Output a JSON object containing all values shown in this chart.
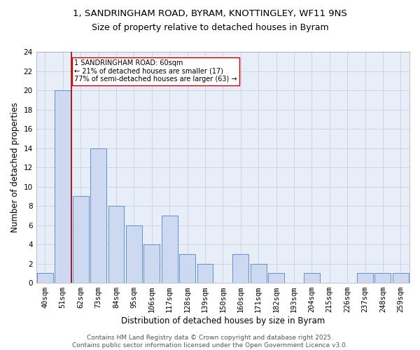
{
  "title_line1": "1, SANDRINGHAM ROAD, BYRAM, KNOTTINGLEY, WF11 9NS",
  "title_line2": "Size of property relative to detached houses in Byram",
  "xlabel": "Distribution of detached houses by size in Byram",
  "ylabel": "Number of detached properties",
  "bar_labels": [
    "40sqm",
    "51sqm",
    "62sqm",
    "73sqm",
    "84sqm",
    "95sqm",
    "106sqm",
    "117sqm",
    "128sqm",
    "139sqm",
    "150sqm",
    "160sqm",
    "171sqm",
    "182sqm",
    "193sqm",
    "204sqm",
    "215sqm",
    "226sqm",
    "237sqm",
    "248sqm",
    "259sqm"
  ],
  "bar_values": [
    1,
    20,
    9,
    14,
    8,
    6,
    4,
    7,
    3,
    2,
    0,
    3,
    2,
    1,
    0,
    1,
    0,
    0,
    1,
    1,
    1
  ],
  "bar_color": "#ccd9f0",
  "bar_edge_color": "#6090d0",
  "grid_color": "#c8d4e8",
  "background_color": "#e8eef8",
  "vline_color": "#aa0000",
  "annotation_text": "1 SANDRINGHAM ROAD: 60sqm\n← 21% of detached houses are smaller (17)\n77% of semi-detached houses are larger (63) →",
  "annotation_box_color": "white",
  "annotation_box_edge_color": "#cc0000",
  "ylim": [
    0,
    24
  ],
  "yticks": [
    0,
    2,
    4,
    6,
    8,
    10,
    12,
    14,
    16,
    18,
    20,
    22,
    24
  ],
  "footer_text": "Contains HM Land Registry data © Crown copyright and database right 2025.\nContains public sector information licensed under the Open Government Licence v3.0.",
  "title_fontsize": 9.5,
  "subtitle_fontsize": 9,
  "axis_label_fontsize": 8.5,
  "tick_fontsize": 7.5,
  "footer_fontsize": 6.5,
  "annotation_fontsize": 7
}
